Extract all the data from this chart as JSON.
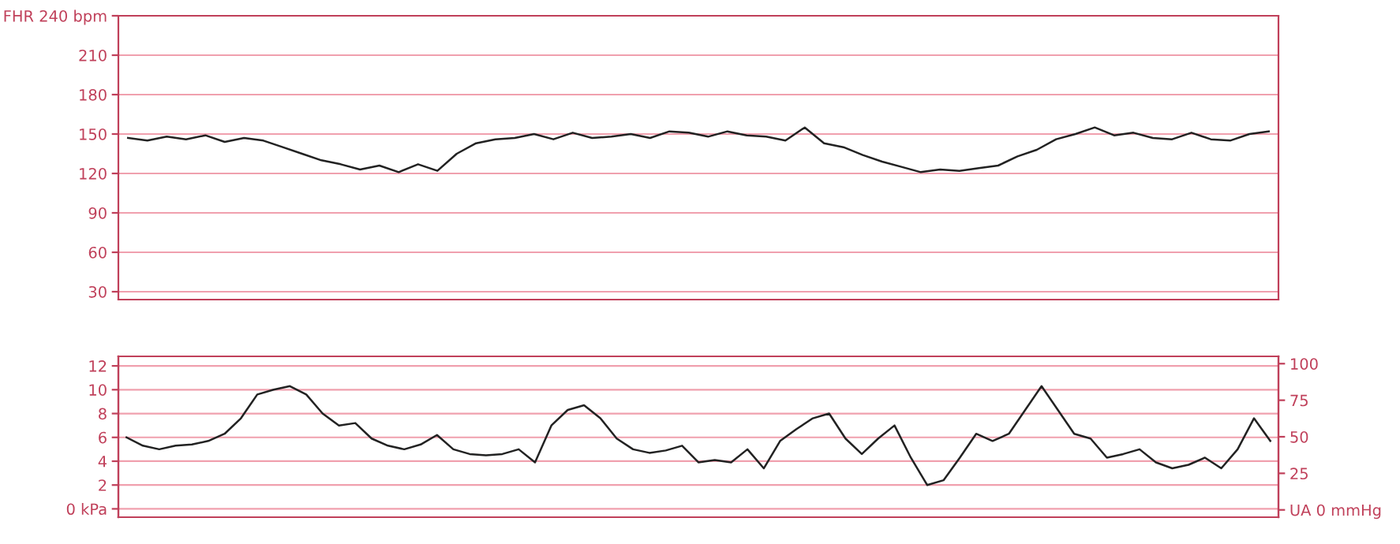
{
  "chart_data": [
    {
      "type": "line",
      "ylim": [
        24,
        240
      ],
      "yticks": [
        30,
        60,
        90,
        120,
        150,
        180,
        210,
        {
          "value": 240,
          "label": "FHR 240 bpm"
        }
      ],
      "grid": "y",
      "legend": false,
      "tick_labels": "y",
      "categories": [
        null,
        null,
        null,
        null,
        null,
        null,
        null,
        null,
        null,
        null,
        null,
        null,
        null,
        null,
        null,
        null,
        null,
        null,
        null,
        null,
        null,
        null,
        null,
        null,
        null,
        null,
        null,
        null,
        null,
        null,
        null,
        null,
        null,
        null,
        null,
        null,
        null,
        null,
        null,
        null,
        null,
        null,
        null,
        null,
        null,
        null,
        null,
        null,
        null,
        null,
        null,
        null,
        null,
        null,
        null,
        null,
        null,
        null,
        null,
        null
      ],
      "series": [
        {
          "color": "#222222",
          "values": [
            147,
            145,
            148,
            146,
            149,
            144,
            147,
            145,
            140,
            135,
            130,
            127,
            123,
            126,
            121,
            127,
            122,
            135,
            143,
            146,
            147,
            150,
            146,
            151,
            147,
            148,
            150,
            147,
            152,
            151,
            148,
            152,
            149,
            148,
            145,
            155,
            143,
            140,
            134,
            129,
            125,
            121,
            123,
            122,
            124,
            126,
            133,
            138,
            146,
            150,
            155,
            149,
            151,
            147,
            146,
            151,
            146,
            145,
            150,
            152
          ]
        }
      ]
    },
    {
      "type": "line",
      "ylim": [
        -0.7,
        12.8
      ],
      "yticks": [
        {
          "value": 0,
          "label": "0 kPa"
        },
        2,
        4,
        6,
        8,
        10,
        12
      ],
      "y2lim": [
        -5,
        105
      ],
      "y2ticks": [
        {
          "value": 0,
          "label": "UA 0 mmHg"
        },
        25,
        50,
        75,
        100
      ],
      "grid": "y",
      "legend": false,
      "tick_labels": "y",
      "categories": [
        null,
        null,
        null,
        null,
        null,
        null,
        null,
        null,
        null,
        null,
        null,
        null,
        null,
        null,
        null,
        null,
        null,
        null,
        null,
        null,
        null,
        null,
        null,
        null,
        null,
        null,
        null,
        null,
        null,
        null,
        null,
        null,
        null,
        null,
        null,
        null,
        null,
        null,
        null,
        null,
        null,
        null,
        null,
        null,
        null,
        null,
        null,
        null,
        null,
        null,
        null,
        null,
        null,
        null,
        null,
        null,
        null,
        null,
        null,
        null,
        null,
        null,
        null,
        null,
        null,
        null,
        null,
        null,
        null,
        null,
        null
      ],
      "series": [
        {
          "color": "#222222",
          "values": [
            6.0,
            5.3,
            5.0,
            5.3,
            5.4,
            5.7,
            6.3,
            7.6,
            9.6,
            10.0,
            10.3,
            9.6,
            8.0,
            7.0,
            7.2,
            5.9,
            5.3,
            5.0,
            5.4,
            6.2,
            5.0,
            4.6,
            4.5,
            4.6,
            5.0,
            3.9,
            7.0,
            8.3,
            8.7,
            7.6,
            5.9,
            5.0,
            4.7,
            4.9,
            5.3,
            3.9,
            4.1,
            3.9,
            5.0,
            3.4,
            5.7,
            6.7,
            7.6,
            8.0,
            5.9,
            4.6,
            5.9,
            7.0,
            4.3,
            2.0,
            2.4,
            4.3,
            6.3,
            5.7,
            6.3,
            8.3,
            10.3,
            8.3,
            6.3,
            5.9,
            4.3,
            4.6,
            5.0,
            3.9,
            3.4,
            3.7,
            4.3,
            3.4,
            5.0,
            7.6,
            5.7
          ]
        }
      ]
    }
  ]
}
